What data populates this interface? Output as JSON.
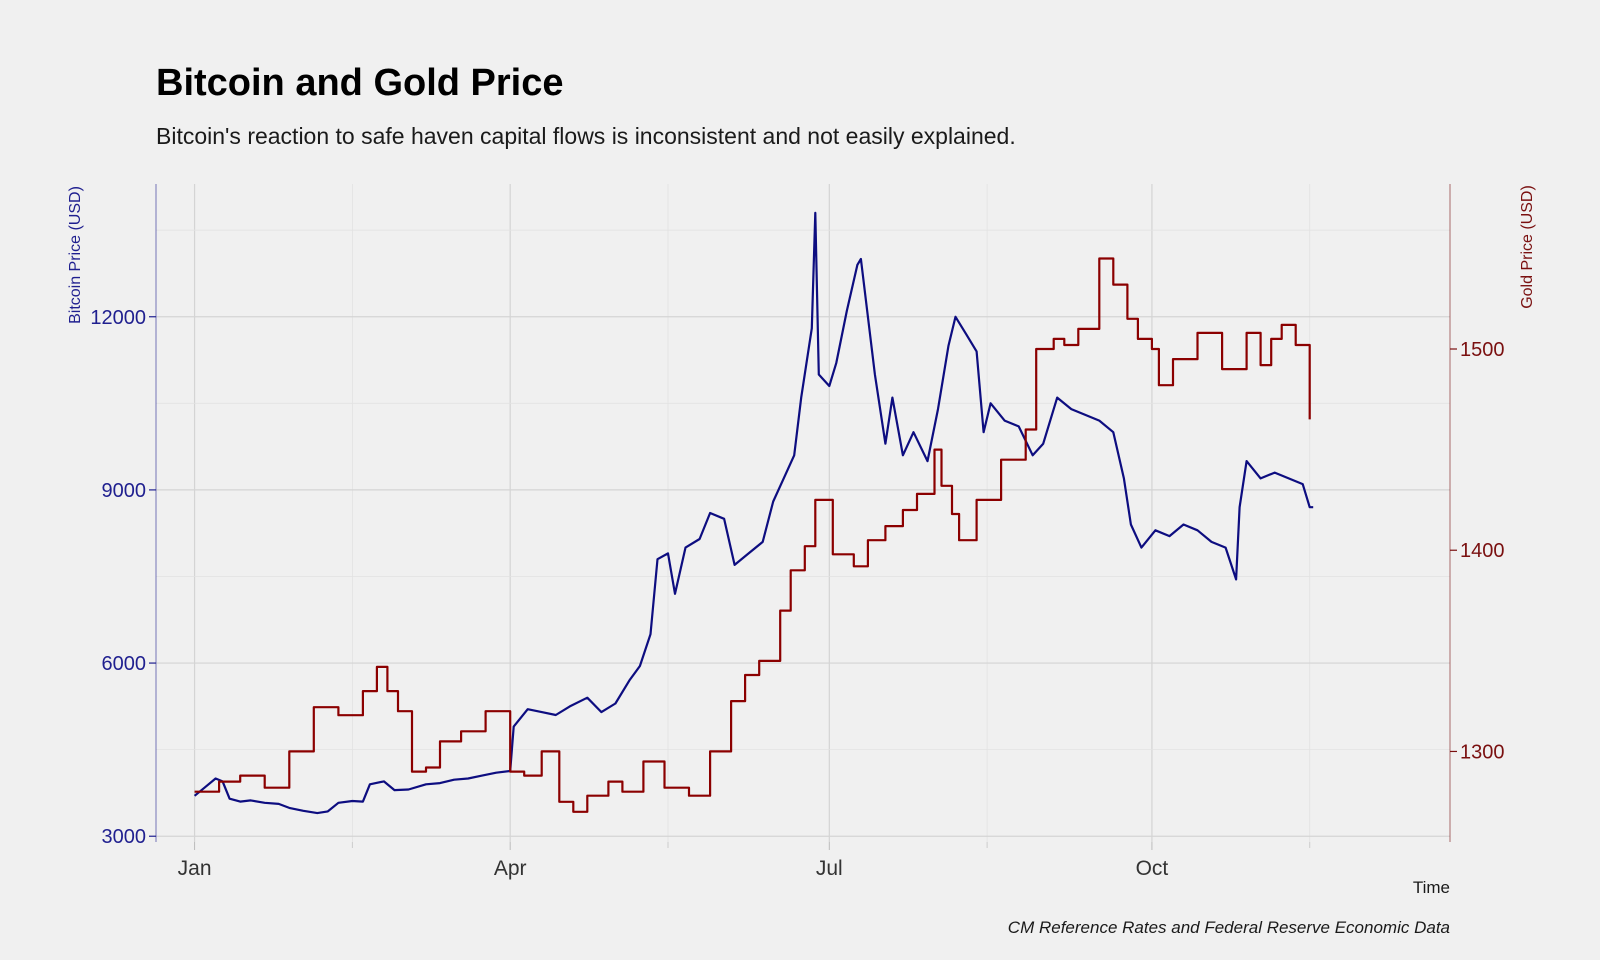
{
  "chart_data": {
    "type": "line",
    "title": "Bitcoin and Gold Price",
    "subtitle": "Bitcoin's reaction to safe haven capital flows is inconsistent and not easily explained.",
    "xlabel": "Time",
    "ylabel_left": "Bitcoin Price (USD)",
    "ylabel_right": "Gold Price (USD)",
    "caption": "CM Reference Rates and Federal Reserve Economic Data",
    "x_ticks": [
      {
        "label": "Jan",
        "date": "2019-01-01"
      },
      {
        "label": "Apr",
        "date": "2019-04-01"
      },
      {
        "label": "Jul",
        "date": "2019-07-01"
      },
      {
        "label": "Oct",
        "date": "2019-10-01"
      }
    ],
    "x_minor_ticks": [
      "2019-02-15",
      "2019-05-16",
      "2019-08-15",
      "2019-11-15"
    ],
    "xlim": [
      "2018-12-21",
      "2019-12-25"
    ],
    "y_left_ticks": [
      3000,
      6000,
      9000,
      12000
    ],
    "y_left_lim": [
      2900,
      14300
    ],
    "y_right_ticks": [
      1300,
      1400,
      1500
    ],
    "y_right_lim": [
      1255,
      1582
    ],
    "grid": true,
    "colors": {
      "bitcoin": "#0d0d80",
      "gold": "#8b0000",
      "left_axis": "#1f1f8f",
      "right_axis": "#7a1010",
      "background": "#f0f0f0"
    },
    "series": [
      {
        "name": "Bitcoin Price (USD)",
        "axis": "left",
        "color": "#0d0d80",
        "x": [
          "2019-01-01",
          "2019-01-04",
          "2019-01-07",
          "2019-01-09",
          "2019-01-11",
          "2019-01-14",
          "2019-01-17",
          "2019-01-21",
          "2019-01-25",
          "2019-01-28",
          "2019-02-01",
          "2019-02-05",
          "2019-02-08",
          "2019-02-11",
          "2019-02-15",
          "2019-02-18",
          "2019-02-20",
          "2019-02-24",
          "2019-02-27",
          "2019-03-03",
          "2019-03-08",
          "2019-03-12",
          "2019-03-16",
          "2019-03-20",
          "2019-03-24",
          "2019-03-28",
          "2019-04-01",
          "2019-04-02",
          "2019-04-06",
          "2019-04-10",
          "2019-04-14",
          "2019-04-18",
          "2019-04-23",
          "2019-04-27",
          "2019-05-01",
          "2019-05-05",
          "2019-05-08",
          "2019-05-11",
          "2019-05-13",
          "2019-05-16",
          "2019-05-18",
          "2019-05-21",
          "2019-05-25",
          "2019-05-28",
          "2019-06-01",
          "2019-06-04",
          "2019-06-08",
          "2019-06-12",
          "2019-06-15",
          "2019-06-18",
          "2019-06-21",
          "2019-06-23",
          "2019-06-26",
          "2019-06-27",
          "2019-06-28",
          "2019-07-01",
          "2019-07-03",
          "2019-07-06",
          "2019-07-09",
          "2019-07-10",
          "2019-07-14",
          "2019-07-17",
          "2019-07-19",
          "2019-07-22",
          "2019-07-25",
          "2019-07-29",
          "2019-08-01",
          "2019-08-04",
          "2019-08-06",
          "2019-08-09",
          "2019-08-12",
          "2019-08-14",
          "2019-08-16",
          "2019-08-20",
          "2019-08-24",
          "2019-08-28",
          "2019-08-31",
          "2019-09-04",
          "2019-09-08",
          "2019-09-12",
          "2019-09-16",
          "2019-09-20",
          "2019-09-23",
          "2019-09-25",
          "2019-09-28",
          "2019-10-02",
          "2019-10-06",
          "2019-10-10",
          "2019-10-14",
          "2019-10-18",
          "2019-10-22",
          "2019-10-25",
          "2019-10-26",
          "2019-10-28",
          "2019-11-01",
          "2019-11-05",
          "2019-11-09",
          "2019-11-13",
          "2019-11-15",
          "2019-11-16"
        ],
        "values": [
          3700,
          3850,
          4000,
          3950,
          3650,
          3600,
          3620,
          3580,
          3560,
          3490,
          3440,
          3400,
          3430,
          3580,
          3610,
          3600,
          3900,
          3950,
          3800,
          3810,
          3900,
          3920,
          3980,
          4000,
          4050,
          4100,
          4130,
          4900,
          5200,
          5150,
          5100,
          5250,
          5400,
          5150,
          5300,
          5700,
          5950,
          6500,
          7800,
          7900,
          7200,
          8000,
          8150,
          8600,
          8500,
          7700,
          7900,
          8100,
          8800,
          9200,
          9600,
          10600,
          11800,
          13800,
          11000,
          10800,
          11200,
          12100,
          12900,
          13000,
          11000,
          9800,
          10600,
          9600,
          10000,
          9500,
          10400,
          11500,
          12000,
          11700,
          11400,
          10000,
          10500,
          10200,
          10100,
          9600,
          9800,
          10600,
          10400,
          10300,
          10200,
          10000,
          9200,
          8400,
          8000,
          8300,
          8200,
          8400,
          8300,
          8100,
          8000,
          7450,
          8700,
          9500,
          9200,
          9300,
          9200,
          9100,
          8700,
          8700
        ]
      },
      {
        "name": "Gold Price (USD)",
        "axis": "right",
        "color": "#8b0000",
        "x": [
          "2019-01-01",
          "2019-01-08",
          "2019-01-14",
          "2019-01-21",
          "2019-01-28",
          "2019-02-04",
          "2019-02-11",
          "2019-02-18",
          "2019-02-22",
          "2019-02-25",
          "2019-02-28",
          "2019-03-04",
          "2019-03-08",
          "2019-03-12",
          "2019-03-18",
          "2019-03-25",
          "2019-04-01",
          "2019-04-05",
          "2019-04-10",
          "2019-04-15",
          "2019-04-19",
          "2019-04-23",
          "2019-04-29",
          "2019-05-03",
          "2019-05-09",
          "2019-05-15",
          "2019-05-22",
          "2019-05-28",
          "2019-06-03",
          "2019-06-07",
          "2019-06-11",
          "2019-06-17",
          "2019-06-20",
          "2019-06-24",
          "2019-06-27",
          "2019-07-02",
          "2019-07-08",
          "2019-07-12",
          "2019-07-17",
          "2019-07-22",
          "2019-07-26",
          "2019-07-31",
          "2019-08-02",
          "2019-08-05",
          "2019-08-07",
          "2019-08-12",
          "2019-08-19",
          "2019-08-26",
          "2019-08-29",
          "2019-09-03",
          "2019-09-06",
          "2019-09-10",
          "2019-09-16",
          "2019-09-20",
          "2019-09-24",
          "2019-09-27",
          "2019-10-01",
          "2019-10-03",
          "2019-10-07",
          "2019-10-14",
          "2019-10-21",
          "2019-10-28",
          "2019-11-01",
          "2019-11-04",
          "2019-11-07",
          "2019-11-11",
          "2019-11-15"
        ],
        "values": [
          1280,
          1285,
          1288,
          1282,
          1300,
          1322,
          1318,
          1330,
          1342,
          1330,
          1320,
          1290,
          1292,
          1305,
          1310,
          1320,
          1290,
          1288,
          1300,
          1275,
          1270,
          1278,
          1285,
          1280,
          1295,
          1282,
          1278,
          1300,
          1325,
          1338,
          1345,
          1370,
          1390,
          1402,
          1425,
          1398,
          1392,
          1405,
          1412,
          1420,
          1428,
          1450,
          1432,
          1418,
          1405,
          1425,
          1445,
          1460,
          1500,
          1505,
          1502,
          1510,
          1545,
          1532,
          1515,
          1505,
          1500,
          1482,
          1495,
          1508,
          1490,
          1508,
          1492,
          1505,
          1512,
          1502,
          1465
        ]
      }
    ]
  }
}
